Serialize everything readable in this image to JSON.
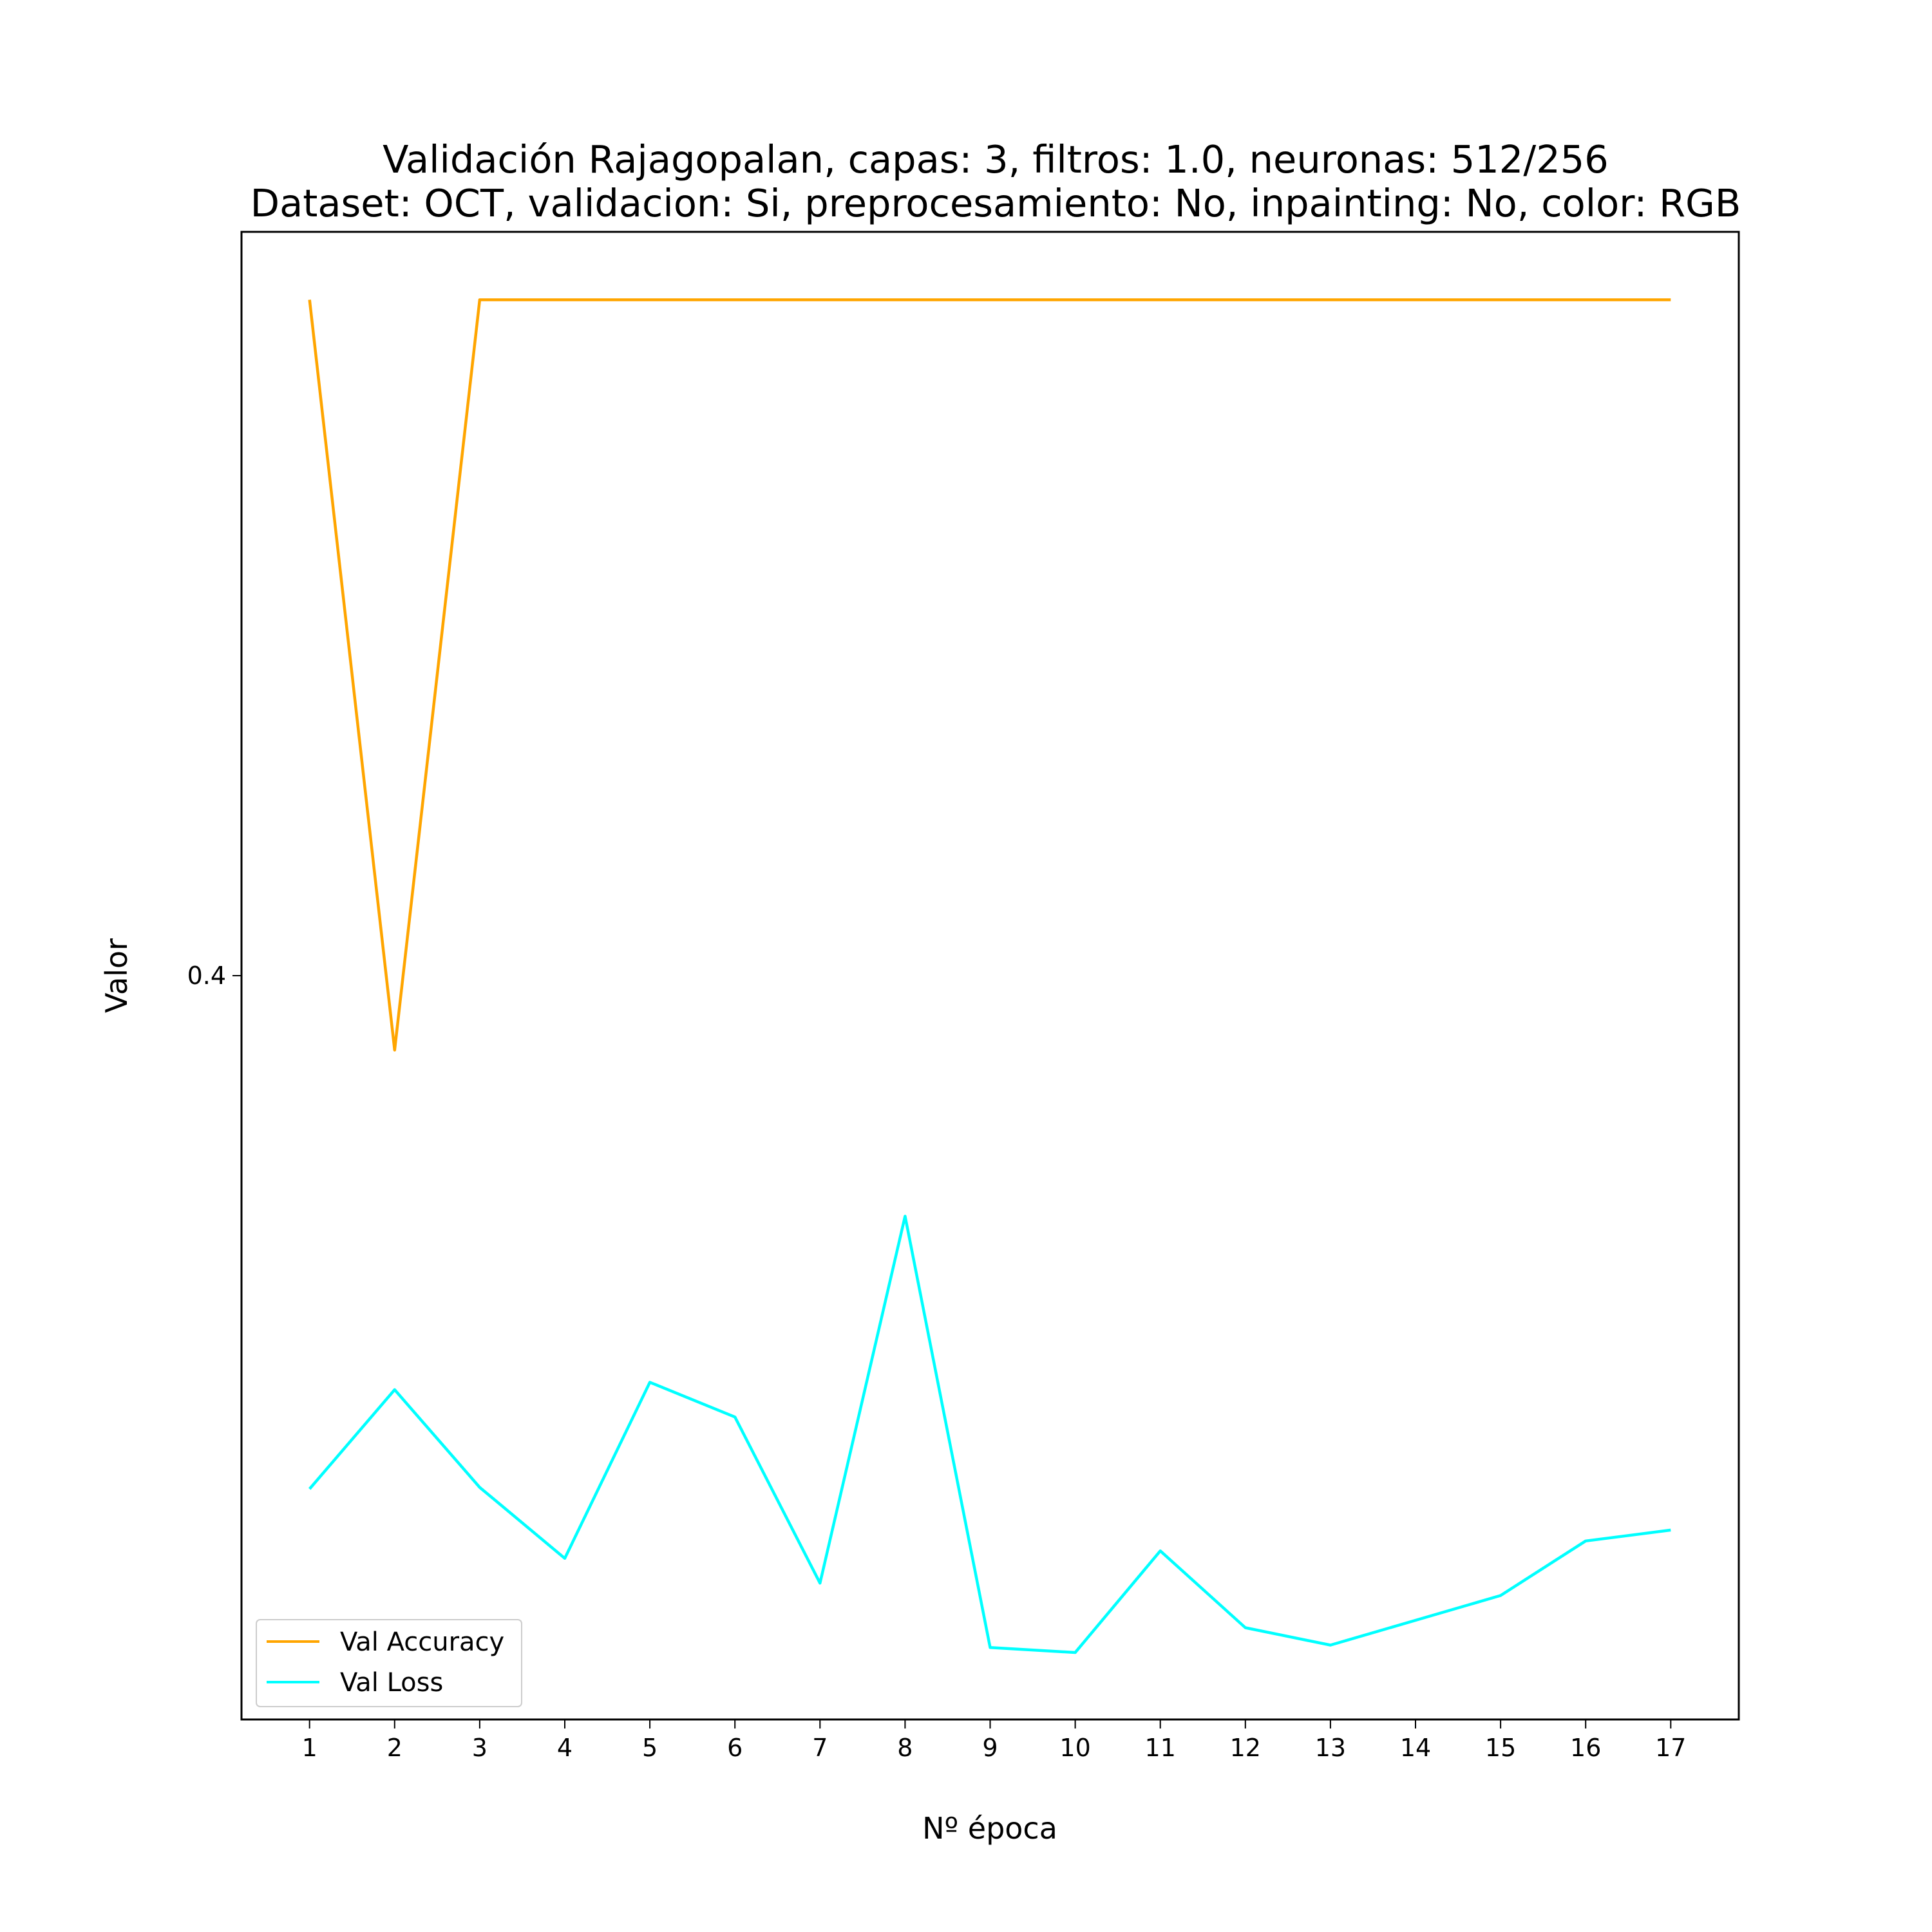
{
  "chart_data": {
    "type": "line",
    "title_line1": "Validación Rajagopalan, capas: 3, filtros: 1.0, neuronas: 512/256",
    "title_line2": "Dataset: OCT, validacion: Si, preprocesamiento: No, inpainting: No, color: RGB",
    "xlabel": "Nº época",
    "ylabel": "Valor",
    "x": [
      1,
      2,
      3,
      4,
      5,
      6,
      7,
      8,
      9,
      10,
      11,
      12,
      13,
      14,
      15,
      16,
      17
    ],
    "x_tick_labels": [
      "1",
      "2",
      "3",
      "4",
      "5",
      "6",
      "7",
      "8",
      "9",
      "10",
      "11",
      "12",
      "13",
      "14",
      "15",
      "16",
      "17"
    ],
    "y_ticks": [
      0.4
    ],
    "y_tick_labels": [
      "0.4"
    ],
    "xlim": [
      0.2,
      17.8
    ],
    "ylim": [
      0.25,
      0.55
    ],
    "grid": false,
    "legend_position": "lower-left",
    "series": [
      {
        "name": "Val Accuracy",
        "color": "#ffa500",
        "values": [
          0.5363,
          0.385,
          0.5363,
          0.5363,
          0.5363,
          0.5363,
          0.5363,
          0.5363,
          0.5363,
          0.5363,
          0.5363,
          0.5363,
          0.5363,
          0.5363,
          0.5363,
          0.5363,
          0.5363
        ]
      },
      {
        "name": "Val Loss",
        "color": "#00ffff",
        "values": [
          0.2965,
          0.3165,
          0.2968,
          0.2825,
          0.318,
          0.311,
          0.2775,
          0.3515,
          0.2645,
          0.2635,
          0.284,
          0.2685,
          0.265,
          0.27,
          0.275,
          0.286,
          0.2882
        ]
      }
    ]
  }
}
